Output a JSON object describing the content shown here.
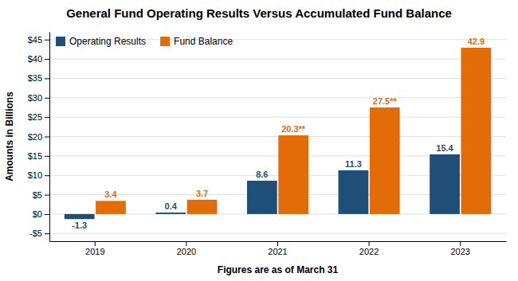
{
  "chart_data": {
    "type": "bar",
    "title": "General Fund Operating Results Versus Accumulated Fund Balance",
    "x_label": "Figures are as of March 31",
    "y_label": "Amounts in Billions",
    "categories": [
      "2019",
      "2020",
      "2021",
      "2022",
      "2023"
    ],
    "series": [
      {
        "name": "Operating Results",
        "color": "#1f4e79",
        "values": [
          -1.3,
          0.4,
          8.6,
          11.3,
          15.4
        ]
      },
      {
        "name": "Fund Balance",
        "color": "#e36c09",
        "values": [
          3.4,
          3.7,
          20.3,
          27.5,
          42.9
        ],
        "value_labels": [
          "3.4",
          "3.7",
          "20.3**",
          "27.5**",
          "42.9"
        ]
      }
    ],
    "ylim": [
      -7,
      47
    ],
    "yticks": [
      {
        "value": -5,
        "label": "-$5"
      },
      {
        "value": 0,
        "label": "$0"
      },
      {
        "value": 5,
        "label": "$5"
      },
      {
        "value": 10,
        "label": "$10"
      },
      {
        "value": 15,
        "label": "$15"
      },
      {
        "value": 20,
        "label": "$20"
      },
      {
        "value": 25,
        "label": "$25"
      },
      {
        "value": 30,
        "label": "$30"
      },
      {
        "value": 35,
        "label": "$35"
      },
      {
        "value": 40,
        "label": "$40"
      },
      {
        "value": 45,
        "label": "$45"
      }
    ],
    "grid": true,
    "legend": "upper-left",
    "data_labels": true
  }
}
